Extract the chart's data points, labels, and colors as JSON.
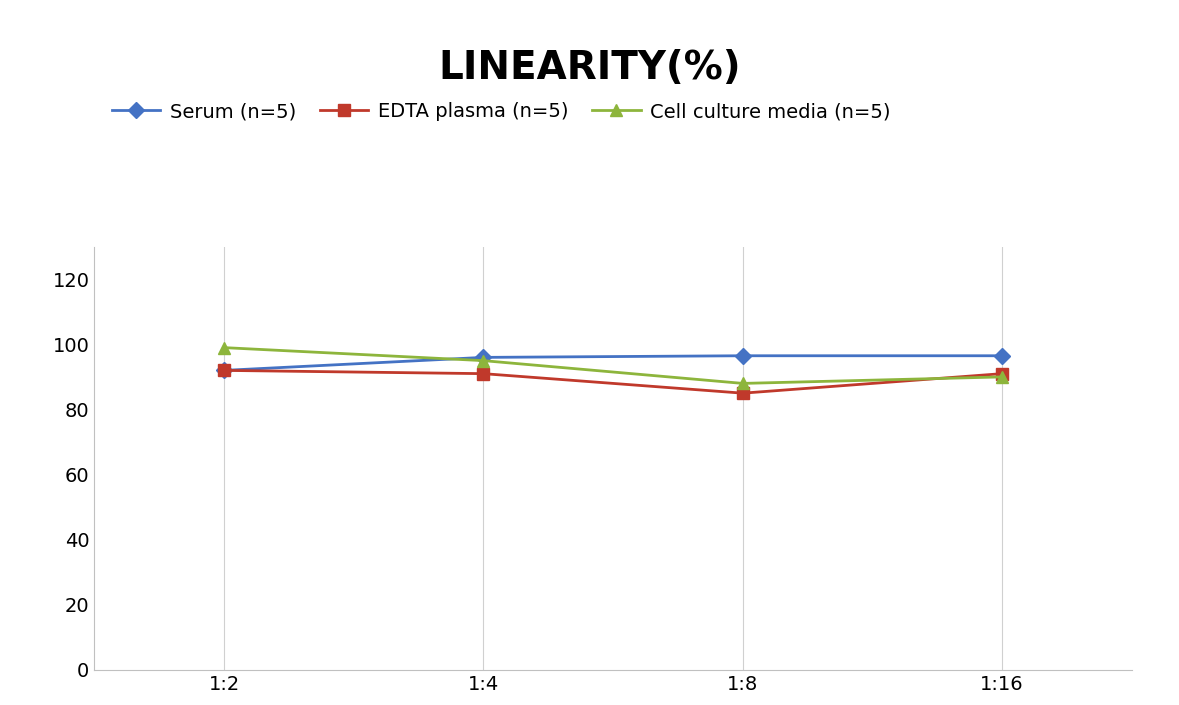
{
  "title": "LINEARITY(%)",
  "title_fontsize": 28,
  "title_fontweight": "bold",
  "x_labels": [
    "1:2",
    "1:4",
    "1:8",
    "1:16"
  ],
  "series": [
    {
      "label": "Serum (n=5)",
      "values": [
        92,
        96,
        96.5,
        96.5
      ],
      "color": "#4472C4",
      "marker": "D",
      "markersize": 8,
      "linewidth": 2
    },
    {
      "label": "EDTA plasma (n=5)",
      "values": [
        92,
        91,
        85,
        91
      ],
      "color": "#C0392B",
      "marker": "s",
      "markersize": 8,
      "linewidth": 2
    },
    {
      "label": "Cell culture media (n=5)",
      "values": [
        99,
        95,
        88,
        90
      ],
      "color": "#8DB53C",
      "marker": "^",
      "markersize": 9,
      "linewidth": 2
    }
  ],
  "ylim": [
    0,
    130
  ],
  "yticks": [
    0,
    20,
    40,
    60,
    80,
    100,
    120
  ],
  "background_color": "#ffffff",
  "legend_fontsize": 14,
  "tick_fontsize": 14,
  "axis_label_color": "#404040"
}
